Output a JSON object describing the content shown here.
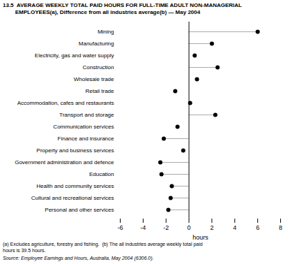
{
  "chart_data": {
    "type": "dot",
    "orientation": "horizontal",
    "title": "13.5  AVERAGE WEEKLY TOTAL PAID HOURS FOR FULL-TIME ADULT NON-MANAGERIAL",
    "subtitle": "        EMPLOYEES(a), Difference from all industries average(b) — May 2004",
    "annotations": [
      "(a) Excludes agriculture, forestry and fishing.  (b) The all industries average weekly total paid",
      "hours is 39.5 hours.",
      "Source: Employee Earnings and Hours, Australia, May 2004 (6306.0)."
    ],
    "categories": [
      "Mining",
      "Manufacturing",
      "Electricity, gas and water supply",
      "Construction",
      "Wholesale trade",
      "Retail trade",
      "Accommodation, cafes and restaurants",
      "Transport and storage",
      "Communication services",
      "Finance and insurance",
      "Property and business services",
      "Government administration and defence",
      "Education",
      "Health and community services",
      "Cultural and recreational services",
      "Personal and other services"
    ],
    "color": "#000000",
    "series": [
      {
        "line_style": "dashed",
        "color": "#aaaaaa",
        "values": [
          6.0,
          2.0,
          null,
          2.5,
          null,
          null,
          null,
          2.3,
          null,
          -2.2,
          null,
          -2.5,
          -2.4,
          -1.5,
          -1.6,
          -1.8
        ]
      },
      {
        "line_style": "none",
        "values": [
          null,
          null,
          0.5,
          null,
          0.7,
          -1.2,
          0.1,
          null,
          -1.0,
          null,
          -0.5,
          null,
          null,
          null,
          null,
          null
        ]
      }
    ],
    "xlabel": "hours",
    "xlim": [
      -6,
      8
    ],
    "xticks": [
      -6,
      -4,
      -2,
      0,
      2,
      4,
      6,
      8
    ],
    "grid": false
  }
}
